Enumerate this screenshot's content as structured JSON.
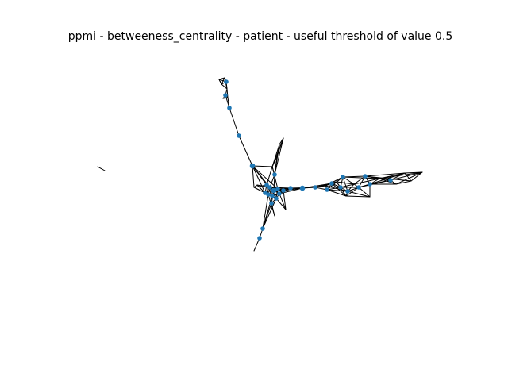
{
  "figure": {
    "title": "ppmi - betweeness_centrality - patient - useful threshold of value 0.5",
    "node_color": "#1f77b4",
    "edge_color": "#000000",
    "background": "#ffffff",
    "axes_visible": false
  }
}
